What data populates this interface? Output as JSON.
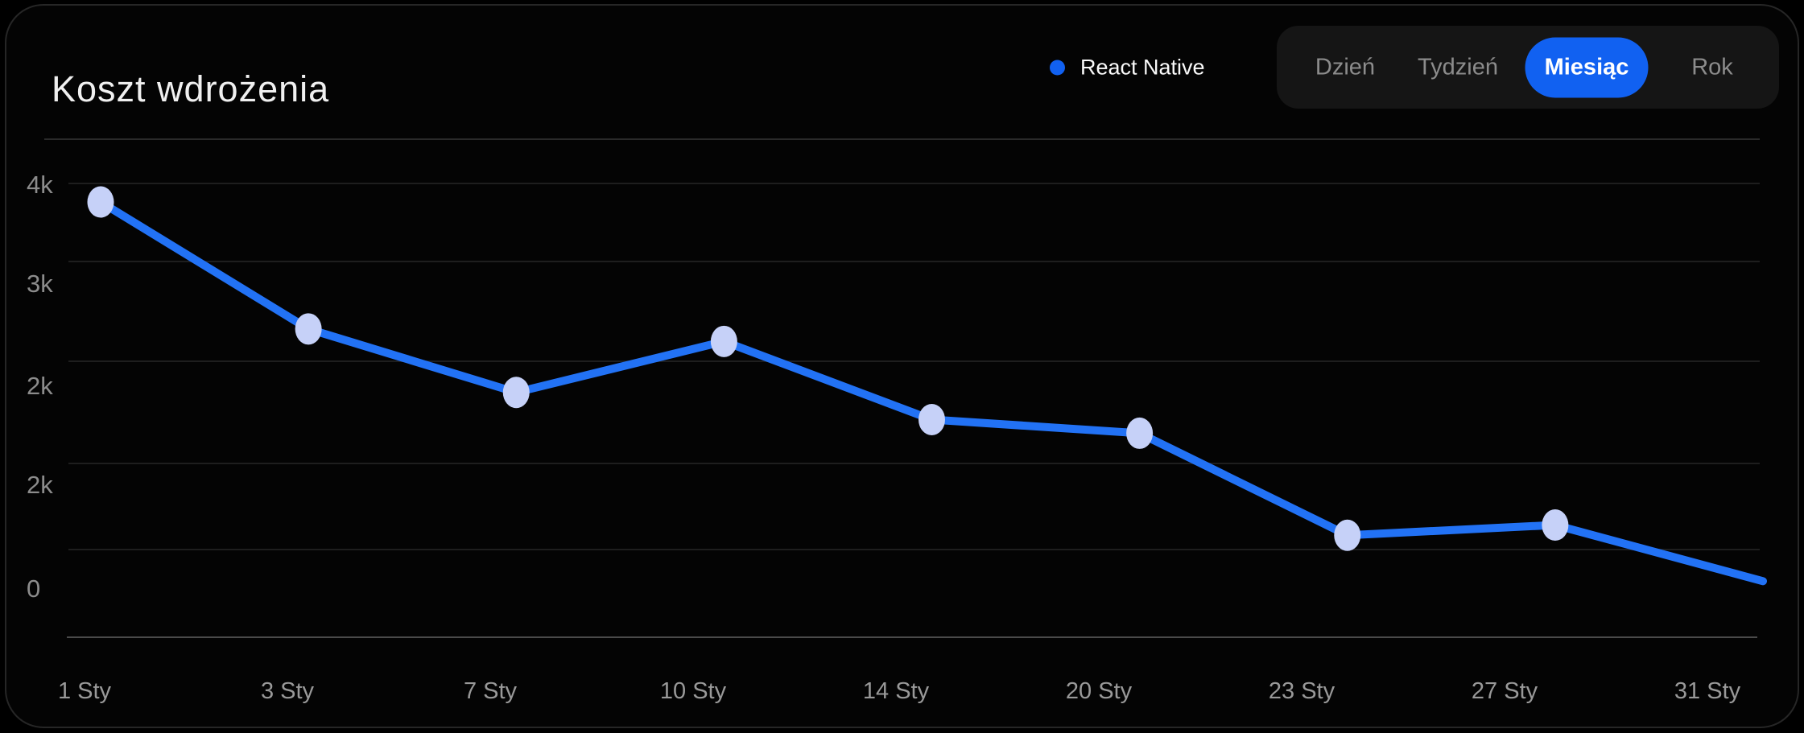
{
  "card": {
    "title": "Koszt wdrożenia"
  },
  "legend": {
    "series_label": "React Native"
  },
  "tabs": {
    "items": [
      {
        "label": "Dzień",
        "selected": false
      },
      {
        "label": "Tydzień",
        "selected": false
      },
      {
        "label": "Miesiąc",
        "selected": true
      },
      {
        "label": "Rok",
        "selected": false
      }
    ]
  },
  "colors": {
    "accent_blue": "#1161f1",
    "line_blue": "#2272f5",
    "marker_fill": "#c6d1f8",
    "grid_line": "#1e1e1e",
    "axis_line": "#4a4a4a",
    "card_background": "#040404",
    "tabs_background": "#151515"
  },
  "chart_data": {
    "type": "line",
    "title": "Koszt wdrożenia",
    "categories": [
      "1 Sty",
      "3 Sty",
      "7 Sty",
      "10 Sty",
      "14 Sty",
      "20 Sty",
      "23 Sty",
      "27 Sty",
      "31 Sty"
    ],
    "series": [
      {
        "name": "React Native",
        "values": [
          3840,
          2720,
          2160,
          2610,
          1920,
          1800,
          900,
          990,
          495
        ]
      }
    ],
    "y_tick_labels": [
      "4k",
      "3k",
      "2k",
      "2k",
      "0"
    ],
    "ylim": [
      0,
      4000
    ],
    "grid": "horizontal-only",
    "legend_position": "top-right",
    "markers": "all-points-except-last"
  }
}
